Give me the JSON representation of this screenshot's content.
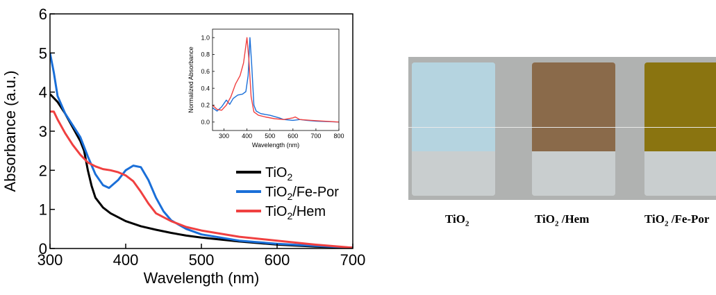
{
  "chart_data": [
    {
      "type": "line",
      "xlabel": "Wavelength (nm)",
      "ylabel": "Absorbance (a.u.)",
      "xlim": [
        300,
        700
      ],
      "ylim": [
        0,
        6
      ],
      "x_ticks": [
        "300",
        "400",
        "500",
        "600",
        "700"
      ],
      "y_ticks": [
        "0",
        "1",
        "2",
        "3",
        "4",
        "5",
        "6"
      ],
      "legend_position": "center-right",
      "series": [
        {
          "name_main": "TiO",
          "name_sub": "2",
          "name_suffix": "",
          "color": "#000000",
          "points": [
            [
              300,
              3.95
            ],
            [
              310,
              3.75
            ],
            [
              320,
              3.45
            ],
            [
              330,
              3.1
            ],
            [
              340,
              2.75
            ],
            [
              345,
              2.5
            ],
            [
              350,
              2.0
            ],
            [
              355,
              1.6
            ],
            [
              360,
              1.3
            ],
            [
              370,
              1.05
            ],
            [
              380,
              0.9
            ],
            [
              400,
              0.7
            ],
            [
              420,
              0.57
            ],
            [
              440,
              0.48
            ],
            [
              460,
              0.4
            ],
            [
              480,
              0.33
            ],
            [
              500,
              0.28
            ],
            [
              550,
              0.18
            ],
            [
              600,
              0.1
            ],
            [
              650,
              0.05
            ],
            [
              700,
              0.02
            ]
          ]
        },
        {
          "name_main": "TiO",
          "name_sub": "2",
          "name_suffix": "/Fe-Por",
          "color": "#1a6fd8",
          "points": [
            [
              300,
              5.0
            ],
            [
              305,
              4.5
            ],
            [
              310,
              3.9
            ],
            [
              320,
              3.45
            ],
            [
              330,
              3.15
            ],
            [
              340,
              2.85
            ],
            [
              350,
              2.35
            ],
            [
              360,
              1.9
            ],
            [
              370,
              1.62
            ],
            [
              378,
              1.55
            ],
            [
              390,
              1.75
            ],
            [
              400,
              2.0
            ],
            [
              410,
              2.12
            ],
            [
              420,
              2.08
            ],
            [
              430,
              1.75
            ],
            [
              440,
              1.3
            ],
            [
              450,
              0.95
            ],
            [
              460,
              0.72
            ],
            [
              480,
              0.5
            ],
            [
              500,
              0.36
            ],
            [
              550,
              0.2
            ],
            [
              600,
              0.12
            ],
            [
              650,
              0.07
            ],
            [
              700,
              0.02
            ]
          ]
        },
        {
          "name_main": "TiO",
          "name_sub": "2",
          "name_suffix": "/Hem",
          "color": "#f04040",
          "points": [
            [
              300,
              3.5
            ],
            [
              305,
              3.5
            ],
            [
              310,
              3.3
            ],
            [
              320,
              2.95
            ],
            [
              330,
              2.65
            ],
            [
              340,
              2.4
            ],
            [
              350,
              2.2
            ],
            [
              360,
              2.1
            ],
            [
              370,
              2.03
            ],
            [
              380,
              2.0
            ],
            [
              390,
              1.95
            ],
            [
              400,
              1.87
            ],
            [
              410,
              1.72
            ],
            [
              420,
              1.45
            ],
            [
              430,
              1.15
            ],
            [
              440,
              0.9
            ],
            [
              460,
              0.7
            ],
            [
              480,
              0.55
            ],
            [
              500,
              0.46
            ],
            [
              550,
              0.3
            ],
            [
              600,
              0.2
            ],
            [
              650,
              0.1
            ],
            [
              700,
              0.02
            ]
          ]
        }
      ]
    },
    {
      "type": "line",
      "xlabel": "Wavelength (nm)",
      "ylabel": "Normalized Absorbance",
      "xlim": [
        250,
        800
      ],
      "ylim": [
        -0.1,
        1.1
      ],
      "x_ticks": [
        "300",
        "400",
        "500",
        "600",
        "700",
        "800"
      ],
      "y_ticks": [
        "0.0",
        "0.2",
        "0.4",
        "0.6",
        "0.8",
        "1.0"
      ],
      "series": [
        {
          "color": "#1a6fd8",
          "points": [
            [
              250,
              0.17
            ],
            [
              270,
              0.13
            ],
            [
              290,
              0.18
            ],
            [
              310,
              0.26
            ],
            [
              325,
              0.21
            ],
            [
              340,
              0.28
            ],
            [
              360,
              0.32
            ],
            [
              380,
              0.33
            ],
            [
              395,
              0.36
            ],
            [
              405,
              0.55
            ],
            [
              413,
              1.0
            ],
            [
              420,
              0.7
            ],
            [
              430,
              0.2
            ],
            [
              440,
              0.13
            ],
            [
              460,
              0.1
            ],
            [
              500,
              0.08
            ],
            [
              540,
              0.05
            ],
            [
              560,
              0.03
            ],
            [
              600,
              0.02
            ],
            [
              630,
              0.03
            ],
            [
              660,
              0.02
            ],
            [
              700,
              0.01
            ],
            [
              800,
              0.0
            ]
          ]
        },
        {
          "color": "#f04040",
          "points": [
            [
              250,
              0.2
            ],
            [
              270,
              0.15
            ],
            [
              290,
              0.14
            ],
            [
              310,
              0.2
            ],
            [
              330,
              0.3
            ],
            [
              350,
              0.45
            ],
            [
              370,
              0.55
            ],
            [
              385,
              0.7
            ],
            [
              400,
              1.0
            ],
            [
              408,
              0.75
            ],
            [
              418,
              0.3
            ],
            [
              430,
              0.12
            ],
            [
              450,
              0.08
            ],
            [
              480,
              0.06
            ],
            [
              520,
              0.04
            ],
            [
              560,
              0.03
            ],
            [
              600,
              0.05
            ],
            [
              610,
              0.06
            ],
            [
              630,
              0.03
            ],
            [
              680,
              0.02
            ],
            [
              800,
              0.0
            ]
          ]
        }
      ]
    }
  ],
  "photo": {
    "captions": [
      {
        "main": "TiO",
        "sub": "2",
        "suffix": ""
      },
      {
        "main": "TiO",
        "sub": "2",
        "suffix": " /Hem"
      },
      {
        "main": "TiO",
        "sub": "2",
        "suffix": " /Fe-Por"
      }
    ],
    "colors": {
      "background": "#b0b2b1",
      "slide_tio2": "#b5d4e0",
      "slide_hem": "#8a6a4a",
      "slide_feporo": "#8a7410"
    }
  }
}
